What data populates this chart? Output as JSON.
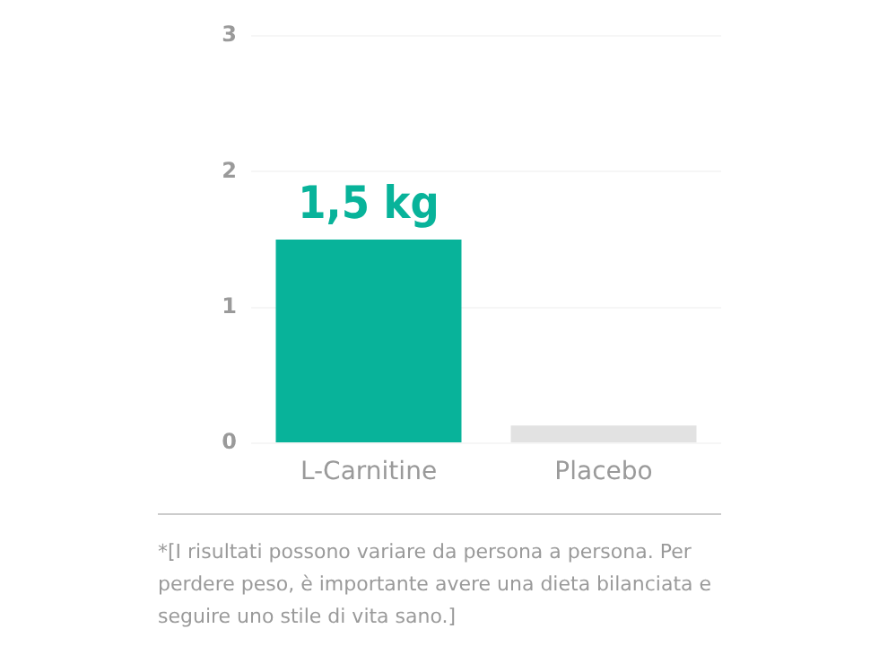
{
  "chart_data": {
    "type": "bar",
    "categories": [
      "L-Carnitine",
      "Placebo"
    ],
    "values": [
      1.5,
      0.13
    ],
    "colors": [
      "#08b39a",
      "#e2e2e2"
    ],
    "value_labels": [
      "1,5 kg",
      null
    ],
    "ylim": [
      0,
      3
    ],
    "yticks": [
      0,
      1,
      2,
      3
    ],
    "grid": "y",
    "legend": false,
    "annotations": [
      "*[I risultati possono variare da persona a persona. Per perdere peso, è importante avere una dieta bilanciata e seguire uno stile di vita sano.]"
    ]
  }
}
